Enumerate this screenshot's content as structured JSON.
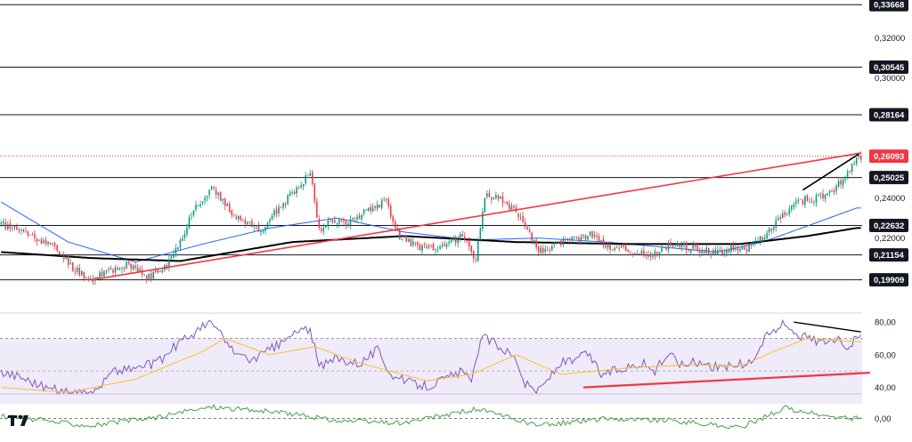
{
  "chart_data": {
    "type": "candlestick",
    "title": "",
    "price_axis": {
      "ylim": [
        0.1825,
        0.339
      ],
      "ticks": [
        "0,32000",
        "0,30000",
        "0,24000",
        "0,22000"
      ],
      "tick_values": [
        0.32,
        0.3,
        0.24,
        0.22
      ]
    },
    "levels": [
      {
        "label": "0,33668",
        "value": 0.33668
      },
      {
        "label": "0,30545",
        "value": 0.30545
      },
      {
        "label": "0,28164",
        "value": 0.28164
      },
      {
        "label": "0,25025",
        "value": 0.25025
      },
      {
        "label": "0,22632",
        "value": 0.22632
      },
      {
        "label": "0,21154",
        "value": 0.21154
      },
      {
        "label": "0,19909",
        "value": 0.19909
      }
    ],
    "current_price": {
      "label": "0,26093",
      "value": 0.26093,
      "color": "#f23645"
    },
    "colors": {
      "up": "#089981",
      "down": "#f23645",
      "ma_short": "#2962ff",
      "ma_long": "#000000",
      "trend": "#f23645",
      "rsi": "#7e57c2",
      "rsi_signal": "#fbc02d",
      "momentum": "#43a047"
    },
    "price_anchors": [
      [
        0,
        0.227
      ],
      [
        8,
        0.224
      ],
      [
        16,
        0.22
      ],
      [
        24,
        0.215
      ],
      [
        32,
        0.2055
      ],
      [
        40,
        0.199
      ],
      [
        46,
        0.203
      ],
      [
        56,
        0.2065
      ],
      [
        66,
        0.2005
      ],
      [
        74,
        0.206
      ],
      [
        80,
        0.218
      ],
      [
        86,
        0.235
      ],
      [
        94,
        0.245
      ],
      [
        102,
        0.234
      ],
      [
        110,
        0.227
      ],
      [
        116,
        0.224
      ],
      [
        122,
        0.232
      ],
      [
        130,
        0.242
      ],
      [
        138,
        0.253
      ],
      [
        142,
        0.225
      ],
      [
        148,
        0.228
      ],
      [
        156,
        0.228
      ],
      [
        164,
        0.235
      ],
      [
        172,
        0.238
      ],
      [
        178,
        0.221
      ],
      [
        186,
        0.216
      ],
      [
        196,
        0.214
      ],
      [
        206,
        0.222
      ],
      [
        212,
        0.209
      ],
      [
        216,
        0.242
      ],
      [
        222,
        0.2395
      ],
      [
        230,
        0.234
      ],
      [
        234,
        0.227
      ],
      [
        240,
        0.213
      ],
      [
        246,
        0.216
      ],
      [
        256,
        0.2195
      ],
      [
        264,
        0.222
      ],
      [
        270,
        0.216
      ],
      [
        280,
        0.214
      ],
      [
        290,
        0.211
      ],
      [
        300,
        0.217
      ],
      [
        310,
        0.2145
      ],
      [
        320,
        0.213
      ],
      [
        328,
        0.215
      ],
      [
        334,
        0.215
      ],
      [
        342,
        0.222
      ],
      [
        350,
        0.233
      ],
      [
        358,
        0.239
      ],
      [
        366,
        0.24
      ],
      [
        372,
        0.244
      ],
      [
        378,
        0.252
      ],
      [
        382,
        0.26
      ]
    ],
    "ma_short_anchors": [
      [
        0,
        0.238
      ],
      [
        30,
        0.218
      ],
      [
        60,
        0.208
      ],
      [
        90,
        0.217
      ],
      [
        120,
        0.225
      ],
      [
        150,
        0.23
      ],
      [
        180,
        0.223
      ],
      [
        210,
        0.219
      ],
      [
        240,
        0.22
      ],
      [
        270,
        0.218
      ],
      [
        300,
        0.215
      ],
      [
        320,
        0.213
      ],
      [
        340,
        0.218
      ],
      [
        360,
        0.226
      ],
      [
        382,
        0.235
      ]
    ],
    "ma_long_anchors": [
      [
        0,
        0.213
      ],
      [
        40,
        0.21
      ],
      [
        80,
        0.2085
      ],
      [
        130,
        0.218
      ],
      [
        180,
        0.221
      ],
      [
        230,
        0.218
      ],
      [
        280,
        0.217
      ],
      [
        330,
        0.217
      ],
      [
        360,
        0.221
      ],
      [
        382,
        0.225
      ]
    ],
    "trendlines": [
      {
        "from": [
          40,
          0.199
        ],
        "to": [
          384,
          0.2625
        ],
        "color": "#f23645"
      },
      {
        "from": [
          358,
          0.244
        ],
        "to": [
          383,
          0.262
        ],
        "color": "#000000"
      }
    ],
    "rsi": {
      "ticks": [
        "80,00",
        "60,00",
        "40,00"
      ],
      "tick_values": [
        80,
        60,
        40
      ],
      "ylim": [
        36,
        85
      ],
      "band": [
        30,
        70
      ],
      "midline": 50,
      "anchors": [
        [
          0,
          50
        ],
        [
          10,
          46
        ],
        [
          20,
          40
        ],
        [
          30,
          37
        ],
        [
          40,
          35
        ],
        [
          50,
          50
        ],
        [
          60,
          52
        ],
        [
          70,
          55
        ],
        [
          80,
          68
        ],
        [
          88,
          75
        ],
        [
          94,
          80
        ],
        [
          102,
          65
        ],
        [
          110,
          56
        ],
        [
          116,
          60
        ],
        [
          124,
          66
        ],
        [
          132,
          74
        ],
        [
          138,
          76
        ],
        [
          142,
          52
        ],
        [
          150,
          58
        ],
        [
          160,
          55
        ],
        [
          168,
          63
        ],
        [
          175,
          47
        ],
        [
          182,
          43
        ],
        [
          190,
          41
        ],
        [
          198,
          45
        ],
        [
          206,
          50
        ],
        [
          210,
          42
        ],
        [
          212,
          55
        ],
        [
          214,
          71
        ],
        [
          220,
          68
        ],
        [
          230,
          58
        ],
        [
          234,
          42
        ],
        [
          240,
          38
        ],
        [
          250,
          55
        ],
        [
          256,
          56
        ],
        [
          262,
          61
        ],
        [
          268,
          48
        ],
        [
          278,
          52
        ],
        [
          286,
          55
        ],
        [
          292,
          50
        ],
        [
          298,
          61
        ],
        [
          304,
          54
        ],
        [
          312,
          56
        ],
        [
          320,
          52
        ],
        [
          328,
          54
        ],
        [
          334,
          54
        ],
        [
          342,
          72
        ],
        [
          350,
          79
        ],
        [
          354,
          75
        ],
        [
          358,
          71
        ],
        [
          366,
          68
        ],
        [
          372,
          70
        ],
        [
          378,
          66
        ],
        [
          383,
          70
        ]
      ],
      "signal_anchors": [
        [
          0,
          40
        ],
        [
          30,
          37
        ],
        [
          60,
          45
        ],
        [
          90,
          62
        ],
        [
          100,
          70
        ],
        [
          120,
          60
        ],
        [
          140,
          65
        ],
        [
          160,
          55
        ],
        [
          190,
          44
        ],
        [
          210,
          48
        ],
        [
          230,
          60
        ],
        [
          250,
          48
        ],
        [
          280,
          52
        ],
        [
          310,
          54
        ],
        [
          330,
          53
        ],
        [
          345,
          62
        ],
        [
          360,
          70
        ],
        [
          383,
          68
        ]
      ],
      "trendlines": [
        {
          "from": [
            260,
            40
          ],
          "to": [
            388,
            49
          ],
          "color": "#f23645"
        },
        {
          "from": [
            354,
            80
          ],
          "to": [
            384,
            74
          ],
          "color": "#000000"
        }
      ]
    },
    "momentum": {
      "ticks": [
        "0,00"
      ],
      "tick_values": [
        0
      ],
      "ylim": [
        -1,
        1
      ],
      "anchors": [
        [
          0,
          0.1
        ],
        [
          40,
          -0.3
        ],
        [
          70,
          0.05
        ],
        [
          94,
          0.5
        ],
        [
          130,
          0.2
        ],
        [
          150,
          -0.1
        ],
        [
          180,
          -0.2
        ],
        [
          212,
          0.4
        ],
        [
          240,
          -0.3
        ],
        [
          270,
          0.0
        ],
        [
          300,
          -0.1
        ],
        [
          330,
          -0.4
        ],
        [
          350,
          0.45
        ],
        [
          370,
          0.05
        ],
        [
          384,
          0.0
        ]
      ]
    }
  },
  "branding": {
    "logo_text": "17",
    "logo_icon": "tradingview-logo-icon"
  }
}
